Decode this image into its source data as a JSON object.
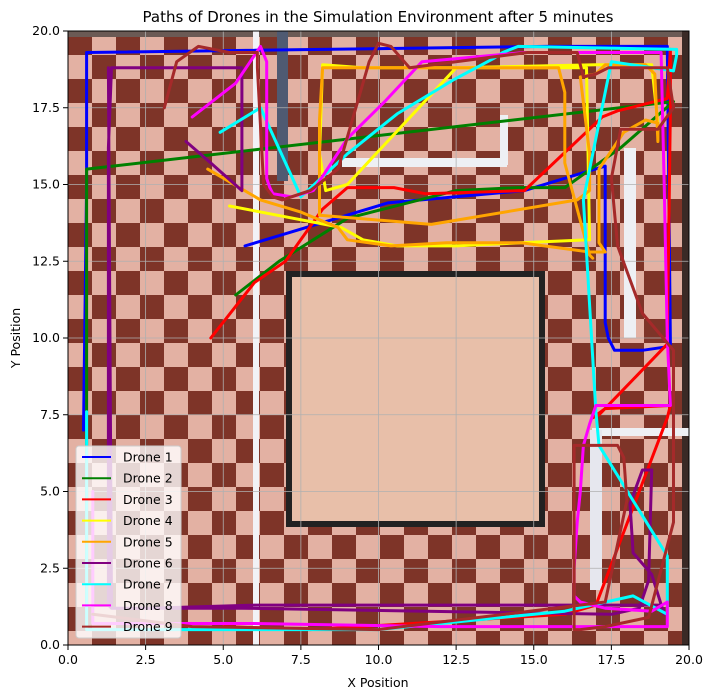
{
  "chart_data": {
    "type": "line",
    "title": "Paths of Drones in the Simulation Environment after 5 minutes",
    "xlabel": "X Position",
    "ylabel": "Y Position",
    "xlim": [
      0,
      20
    ],
    "ylim": [
      0,
      20
    ],
    "xticks": [
      "0.0",
      "2.5",
      "5.0",
      "7.5",
      "10.0",
      "12.5",
      "15.0",
      "17.5",
      "20.0"
    ],
    "yticks": [
      "0.0",
      "2.5",
      "5.0",
      "7.5",
      "10.0",
      "12.5",
      "15.0",
      "17.5",
      "20.0"
    ],
    "grid": true,
    "legend_position": "lower-left",
    "background": "checkerboard floor image with wooden center square and white/grey wall strips",
    "series": [
      {
        "name": "Drone 1",
        "color": "#0000ff",
        "x": [
          5.7,
          8.0,
          10.3,
          14.7,
          17.3,
          17.3,
          17.4,
          17.6,
          18.5,
          19.2,
          19.4,
          19.3,
          17.5,
          15.4,
          0.6,
          0.6,
          0.5
        ],
        "y": [
          13.0,
          13.7,
          14.4,
          14.8,
          15.6,
          10.5,
          10.0,
          9.6,
          9.6,
          9.7,
          9.8,
          19.5,
          19.5,
          19.5,
          19.3,
          15.0,
          7.0
        ]
      },
      {
        "name": "Drone 2",
        "color": "#008000",
        "x": [
          5.4,
          6.8,
          9.0,
          12.5,
          14.5,
          16.0,
          17.8,
          19.5,
          0.6,
          0.6
        ],
        "y": [
          11.4,
          12.5,
          13.9,
          14.8,
          14.9,
          14.9,
          16.2,
          17.7,
          15.5,
          1.0
        ]
      },
      {
        "name": "Drone 3",
        "color": "#ff0000",
        "x": [
          4.6,
          6.0,
          7.0,
          8.2,
          9.0,
          10.5,
          11.5,
          14.7,
          17.0,
          17.2,
          17.7,
          18.5,
          19.3,
          19.4,
          19.4,
          19.3,
          17.1,
          16.9,
          17.3,
          19.4,
          19.3,
          17.0,
          16.0,
          7.8,
          5.0
        ],
        "y": [
          10.0,
          11.8,
          12.5,
          14.2,
          14.9,
          14.9,
          14.7,
          14.8,
          17.0,
          17.2,
          17.4,
          17.6,
          17.8,
          19.4,
          17.5,
          9.8,
          7.5,
          7.4,
          7.7,
          7.8,
          7.4,
          1.3,
          1.0,
          0.5,
          0.6
        ]
      },
      {
        "name": "Drone 4",
        "color": "#ffff00",
        "x": [
          5.2,
          8.8,
          9.5,
          10.6,
          12.5,
          14.6,
          16.8,
          16.8,
          16.7,
          16.5,
          13.5,
          10.4,
          9.5,
          8.2,
          8.1,
          8.3,
          9.0,
          12.5,
          17.0,
          18.8,
          19.0,
          19.0
        ],
        "y": [
          14.3,
          13.6,
          13.2,
          13.0,
          13.0,
          13.1,
          13.2,
          13.2,
          18.8,
          18.8,
          18.8,
          18.8,
          18.8,
          18.9,
          16.0,
          14.8,
          15.0,
          18.8,
          18.9,
          18.9,
          17.0,
          16.8
        ]
      },
      {
        "name": "Drone 5",
        "color": "#ffa500",
        "x": [
          4.5,
          6.2,
          7.5,
          8.7,
          9.0,
          10.4,
          12.2,
          14.6,
          16.8,
          17.3,
          17.1,
          17.1,
          17.9,
          18.6,
          19.0,
          19.0,
          18.9,
          18.6,
          17.7,
          17.3,
          17.0,
          16.5,
          16.8,
          16.8,
          16.4,
          11.7,
          8.1,
          8.1,
          8.2,
          8.7,
          9.3,
          12.3,
          15.8,
          16.0,
          16.0,
          16.8,
          16.9
        ],
        "y": [
          15.5,
          14.5,
          14.1,
          13.6,
          13.2,
          13.0,
          13.1,
          13.1,
          12.8,
          12.8,
          13.1,
          15.5,
          16.7,
          17.1,
          17.0,
          16.4,
          18.6,
          18.9,
          18.9,
          18.9,
          18.6,
          18.5,
          16.0,
          14.8,
          14.5,
          13.7,
          14.0,
          17.1,
          18.8,
          18.8,
          18.8,
          18.8,
          18.8,
          18.0,
          15.7,
          12.7,
          12.6
        ]
      },
      {
        "name": "Drone 6",
        "color": "#800080",
        "x": [
          3.8,
          4.6,
          5.6,
          5.6,
          5.6,
          4.2,
          1.4,
          1.3,
          1.3,
          1.4,
          2.6,
          6.0,
          17.0,
          19.1,
          19.2,
          18.8,
          18.2,
          18.1,
          18.5,
          18.8,
          18.7,
          18.4,
          17.5,
          5.6,
          1.4,
          1.3
        ],
        "y": [
          16.4,
          15.7,
          14.8,
          15.5,
          18.8,
          18.8,
          18.8,
          16.2,
          1.3,
          1.2,
          1.2,
          1.3,
          1.3,
          1.3,
          1.0,
          2.3,
          3.0,
          4.6,
          5.7,
          5.7,
          2.1,
          1.2,
          1.0,
          1.2,
          1.2,
          18.8
        ]
      },
      {
        "name": "Drone 7",
        "color": "#00ffff",
        "x": [
          4.9,
          6.2,
          7.5,
          9.0,
          10.6,
          12.4,
          13.7,
          14.0,
          14.5,
          19.6,
          19.6,
          19.5,
          17.5,
          16.6,
          17.0,
          17.1,
          19.3,
          19.3,
          18.2,
          16.0,
          10.0,
          5.0,
          0.6,
          0.6,
          0.6
        ],
        "y": [
          16.7,
          17.5,
          14.6,
          16.0,
          17.3,
          18.4,
          19.1,
          19.3,
          19.5,
          19.4,
          19.2,
          18.7,
          19.0,
          14.5,
          7.6,
          6.5,
          2.9,
          1.0,
          1.6,
          1.1,
          0.5,
          0.5,
          0.5,
          5.0,
          7.6
        ]
      },
      {
        "name": "Drone 8",
        "color": "#ff00ff",
        "x": [
          4.0,
          5.4,
          6.2,
          6.4,
          6.4,
          6.5,
          6.6,
          7.2,
          7.9,
          9.0,
          10.2,
          11.4,
          14.7,
          17.0,
          19.1,
          19.2,
          19.3,
          19.4,
          19.2,
          17.0,
          16.8,
          16.6,
          16.5,
          16.4,
          16.3,
          16.3,
          16.5,
          17.3,
          18.8,
          19.3,
          19.3,
          16.7,
          12.0,
          6.0,
          0.8,
          0.8
        ],
        "y": [
          17.2,
          18.3,
          19.5,
          19.0,
          15.2,
          14.9,
          14.7,
          14.6,
          14.8,
          16.5,
          17.7,
          19.0,
          19.3,
          19.3,
          19.3,
          15.0,
          10.0,
          7.8,
          7.8,
          7.8,
          7.2,
          6.5,
          5.0,
          4.0,
          2.5,
          1.6,
          1.4,
          1.2,
          1.1,
          1.4,
          0.6,
          0.6,
          0.6,
          0.7,
          0.7,
          5.0
        ]
      },
      {
        "name": "Drone 9",
        "color": "#a52a2a",
        "x": [
          3.1,
          3.5,
          4.2,
          5.2,
          6.1,
          6.1,
          6.3,
          6.6,
          6.9,
          7.8,
          8.7,
          9.7,
          10.0,
          10.4,
          11.0,
          14.8,
          16.4,
          16.6,
          17.0,
          17.4,
          19.3,
          19.5,
          19.0,
          17.8,
          17.5,
          17.7,
          18.5,
          19.5,
          19.5,
          18.7,
          17.3,
          16.5,
          16.3,
          16.3,
          16.3,
          17.0,
          17.7,
          17.9,
          18.0,
          17.3,
          10.0,
          4.0,
          0.8
        ],
        "y": [
          17.5,
          19.0,
          19.5,
          19.3,
          19.3,
          18.8,
          15.0,
          14.6,
          14.5,
          14.8,
          15.5,
          19.0,
          19.6,
          19.5,
          18.8,
          19.3,
          19.3,
          18.5,
          18.6,
          18.8,
          18.8,
          17.5,
          16.8,
          16.8,
          15.2,
          13.0,
          10.8,
          9.6,
          4.0,
          0.9,
          0.6,
          0.5,
          0.5,
          5.0,
          6.5,
          6.5,
          6.5,
          6.1,
          4.7,
          1.4,
          0.5,
          0.6,
          1.0
        ]
      }
    ]
  }
}
